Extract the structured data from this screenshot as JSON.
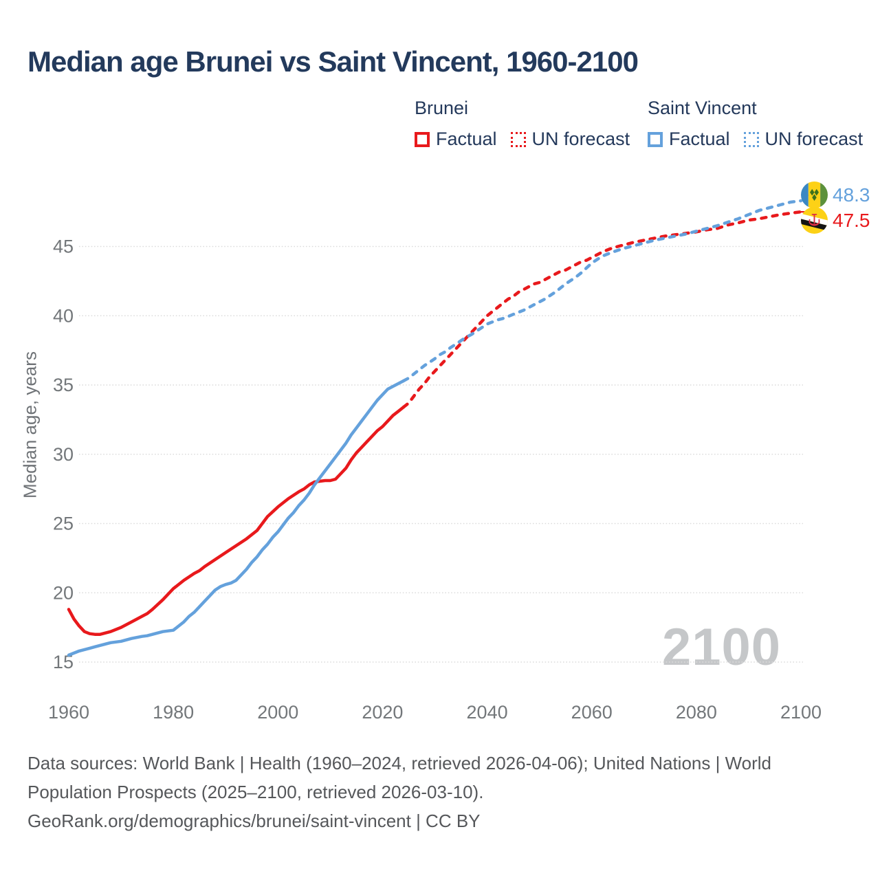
{
  "title": "Median age Brunei vs Saint Vincent, 1960-2100",
  "colors": {
    "brunei": "#e8191c",
    "saint_vincent": "#64a1dc",
    "title_text": "#233a5c",
    "legend_text": "#24395b",
    "tick_text": "#73777a",
    "gridline": "#dcdcdc",
    "watermark": "#c5c7c9",
    "footer_text": "#55575a"
  },
  "legend": {
    "groups": [
      {
        "label": "Brunei",
        "color": "#e8191c",
        "items": [
          {
            "label": "Factual",
            "style": "solid"
          },
          {
            "label": "UN forecast",
            "style": "dotted"
          }
        ]
      },
      {
        "label": "Saint Vincent",
        "color": "#64a1dc",
        "items": [
          {
            "label": "Factual",
            "style": "solid"
          },
          {
            "label": "UN forecast",
            "style": "dotted"
          }
        ]
      }
    ]
  },
  "chart_data": {
    "type": "line",
    "title": "Median age Brunei vs Saint Vincent, 1960-2100",
    "xlabel": "",
    "ylabel": "Median age, years",
    "xlim": [
      1960,
      2100
    ],
    "ylim": [
      15,
      49
    ],
    "x_ticks": [
      1960,
      1980,
      2000,
      2020,
      2040,
      2060,
      2080,
      2100
    ],
    "y_ticks": [
      15,
      20,
      25,
      30,
      35,
      40,
      45
    ],
    "grid": "horizontal-dotted",
    "legend_position": "top-right",
    "watermark": "2100",
    "series": [
      {
        "name": "Brunei Factual",
        "country": "Brunei",
        "kind": "Factual",
        "color": "#e8191c",
        "dash": false,
        "points": [
          [
            1960,
            18.8
          ],
          [
            1961,
            18.1
          ],
          [
            1962,
            17.6
          ],
          [
            1963,
            17.2
          ],
          [
            1964,
            17.05
          ],
          [
            1965,
            17.0
          ],
          [
            1966,
            17.0
          ],
          [
            1967,
            17.1
          ],
          [
            1968,
            17.2
          ],
          [
            1970,
            17.5
          ],
          [
            1972,
            17.9
          ],
          [
            1974,
            18.3
          ],
          [
            1975,
            18.5
          ],
          [
            1976,
            18.8
          ],
          [
            1978,
            19.5
          ],
          [
            1980,
            20.3
          ],
          [
            1982,
            20.9
          ],
          [
            1984,
            21.4
          ],
          [
            1985,
            21.6
          ],
          [
            1986,
            21.9
          ],
          [
            1988,
            22.4
          ],
          [
            1990,
            22.9
          ],
          [
            1992,
            23.4
          ],
          [
            1994,
            23.9
          ],
          [
            1996,
            24.5
          ],
          [
            1998,
            25.5
          ],
          [
            2000,
            26.2
          ],
          [
            2002,
            26.8
          ],
          [
            2004,
            27.3
          ],
          [
            2005,
            27.5
          ],
          [
            2006,
            27.8
          ],
          [
            2007,
            28.0
          ],
          [
            2008,
            28.05
          ],
          [
            2009,
            28.1
          ],
          [
            2010,
            28.1
          ],
          [
            2011,
            28.2
          ],
          [
            2012,
            28.6
          ],
          [
            2013,
            29.0
          ],
          [
            2014,
            29.6
          ],
          [
            2015,
            30.1
          ],
          [
            2016,
            30.5
          ],
          [
            2017,
            30.9
          ],
          [
            2018,
            31.3
          ],
          [
            2019,
            31.7
          ],
          [
            2020,
            32.0
          ],
          [
            2021,
            32.4
          ],
          [
            2022,
            32.8
          ],
          [
            2023,
            33.1
          ],
          [
            2024,
            33.4
          ]
        ]
      },
      {
        "name": "Brunei UN forecast",
        "country": "Brunei",
        "kind": "UN forecast",
        "color": "#e8191c",
        "dash": true,
        "points": [
          [
            2024,
            33.4
          ],
          [
            2025,
            33.7
          ],
          [
            2026,
            34.2
          ],
          [
            2027,
            34.7
          ],
          [
            2028,
            35.1
          ],
          [
            2029,
            35.6
          ],
          [
            2030,
            36.0
          ],
          [
            2031,
            36.4
          ],
          [
            2032,
            36.8
          ],
          [
            2033,
            37.2
          ],
          [
            2034,
            37.6
          ],
          [
            2035,
            38.0
          ],
          [
            2036,
            38.4
          ],
          [
            2037,
            38.8
          ],
          [
            2038,
            39.2
          ],
          [
            2039,
            39.6
          ],
          [
            2040,
            40.0
          ],
          [
            2041,
            40.3
          ],
          [
            2042,
            40.6
          ],
          [
            2043,
            40.9
          ],
          [
            2044,
            41.2
          ],
          [
            2045,
            41.4
          ],
          [
            2046,
            41.7
          ],
          [
            2047,
            41.9
          ],
          [
            2048,
            42.1
          ],
          [
            2049,
            42.3
          ],
          [
            2050,
            42.4
          ],
          [
            2051,
            42.6
          ],
          [
            2052,
            42.8
          ],
          [
            2053,
            43.0
          ],
          [
            2054,
            43.2
          ],
          [
            2055,
            43.3
          ],
          [
            2056,
            43.5
          ],
          [
            2057,
            43.7
          ],
          [
            2058,
            43.9
          ],
          [
            2059,
            44.0
          ],
          [
            2060,
            44.2
          ],
          [
            2062,
            44.6
          ],
          [
            2064,
            44.9
          ],
          [
            2066,
            45.1
          ],
          [
            2068,
            45.3
          ],
          [
            2070,
            45.45
          ],
          [
            2072,
            45.6
          ],
          [
            2074,
            45.75
          ],
          [
            2076,
            45.85
          ],
          [
            2078,
            45.95
          ],
          [
            2080,
            46.05
          ],
          [
            2082,
            46.2
          ],
          [
            2084,
            46.3
          ],
          [
            2086,
            46.55
          ],
          [
            2088,
            46.7
          ],
          [
            2090,
            46.9
          ],
          [
            2092,
            47.0
          ],
          [
            2094,
            47.15
          ],
          [
            2096,
            47.3
          ],
          [
            2098,
            47.4
          ],
          [
            2100,
            47.5
          ]
        ]
      },
      {
        "name": "Saint Vincent Factual",
        "country": "Saint Vincent",
        "kind": "Factual",
        "color": "#64a1dc",
        "dash": false,
        "points": [
          [
            1960,
            15.5
          ],
          [
            1962,
            15.8
          ],
          [
            1964,
            16.0
          ],
          [
            1965,
            16.1
          ],
          [
            1966,
            16.2
          ],
          [
            1968,
            16.4
          ],
          [
            1970,
            16.5
          ],
          [
            1972,
            16.7
          ],
          [
            1974,
            16.85
          ],
          [
            1975,
            16.9
          ],
          [
            1976,
            17.0
          ],
          [
            1977,
            17.1
          ],
          [
            1978,
            17.2
          ],
          [
            1979,
            17.25
          ],
          [
            1980,
            17.3
          ],
          [
            1981,
            17.6
          ],
          [
            1982,
            17.9
          ],
          [
            1983,
            18.3
          ],
          [
            1984,
            18.6
          ],
          [
            1985,
            19.0
          ],
          [
            1986,
            19.4
          ],
          [
            1987,
            19.8
          ],
          [
            1988,
            20.2
          ],
          [
            1989,
            20.45
          ],
          [
            1990,
            20.6
          ],
          [
            1991,
            20.7
          ],
          [
            1992,
            20.9
          ],
          [
            1993,
            21.3
          ],
          [
            1994,
            21.7
          ],
          [
            1995,
            22.2
          ],
          [
            1996,
            22.6
          ],
          [
            1997,
            23.1
          ],
          [
            1998,
            23.5
          ],
          [
            1999,
            24.0
          ],
          [
            2000,
            24.4
          ],
          [
            2001,
            24.9
          ],
          [
            2002,
            25.4
          ],
          [
            2003,
            25.8
          ],
          [
            2004,
            26.3
          ],
          [
            2005,
            26.7
          ],
          [
            2006,
            27.2
          ],
          [
            2007,
            27.8
          ],
          [
            2008,
            28.3
          ],
          [
            2009,
            28.8
          ],
          [
            2010,
            29.3
          ],
          [
            2011,
            29.8
          ],
          [
            2012,
            30.3
          ],
          [
            2013,
            30.8
          ],
          [
            2014,
            31.4
          ],
          [
            2015,
            31.9
          ],
          [
            2016,
            32.4
          ],
          [
            2017,
            32.9
          ],
          [
            2018,
            33.4
          ],
          [
            2019,
            33.9
          ],
          [
            2020,
            34.3
          ],
          [
            2021,
            34.7
          ],
          [
            2022,
            34.9
          ],
          [
            2023,
            35.1
          ],
          [
            2024,
            35.3
          ]
        ]
      },
      {
        "name": "Saint Vincent UN forecast",
        "country": "Saint Vincent",
        "kind": "UN forecast",
        "color": "#64a1dc",
        "dash": true,
        "points": [
          [
            2024,
            35.3
          ],
          [
            2025,
            35.5
          ],
          [
            2026,
            35.8
          ],
          [
            2027,
            36.1
          ],
          [
            2028,
            36.4
          ],
          [
            2029,
            36.65
          ],
          [
            2030,
            36.9
          ],
          [
            2031,
            37.2
          ],
          [
            2032,
            37.4
          ],
          [
            2033,
            37.7
          ],
          [
            2034,
            37.95
          ],
          [
            2035,
            38.2
          ],
          [
            2036,
            38.45
          ],
          [
            2037,
            38.65
          ],
          [
            2038,
            38.9
          ],
          [
            2039,
            39.15
          ],
          [
            2040,
            39.4
          ],
          [
            2041,
            39.55
          ],
          [
            2042,
            39.7
          ],
          [
            2043,
            39.8
          ],
          [
            2044,
            39.95
          ],
          [
            2045,
            40.1
          ],
          [
            2046,
            40.25
          ],
          [
            2047,
            40.4
          ],
          [
            2048,
            40.6
          ],
          [
            2049,
            40.8
          ],
          [
            2050,
            41.0
          ],
          [
            2051,
            41.2
          ],
          [
            2052,
            41.45
          ],
          [
            2053,
            41.7
          ],
          [
            2054,
            42.0
          ],
          [
            2055,
            42.3
          ],
          [
            2056,
            42.55
          ],
          [
            2057,
            42.8
          ],
          [
            2058,
            43.1
          ],
          [
            2059,
            43.45
          ],
          [
            2060,
            43.8
          ],
          [
            2061,
            44.05
          ],
          [
            2062,
            44.3
          ],
          [
            2064,
            44.6
          ],
          [
            2066,
            44.85
          ],
          [
            2068,
            45.05
          ],
          [
            2070,
            45.25
          ],
          [
            2072,
            45.45
          ],
          [
            2074,
            45.6
          ],
          [
            2076,
            45.75
          ],
          [
            2078,
            45.9
          ],
          [
            2080,
            46.1
          ],
          [
            2082,
            46.3
          ],
          [
            2084,
            46.5
          ],
          [
            2086,
            46.75
          ],
          [
            2088,
            47.0
          ],
          [
            2090,
            47.3
          ],
          [
            2092,
            47.6
          ],
          [
            2094,
            47.8
          ],
          [
            2096,
            48.0
          ],
          [
            2098,
            48.2
          ],
          [
            2100,
            48.3
          ]
        ]
      }
    ],
    "end_labels": [
      {
        "series": "Saint Vincent UN forecast",
        "value": "48.3",
        "color": "#64a1dc",
        "flag": "saint-vincent"
      },
      {
        "series": "Brunei UN forecast",
        "value": "47.5",
        "color": "#e8191c",
        "flag": "brunei"
      }
    ]
  },
  "footer": {
    "lines": [
      "Data sources: World Bank | Health (1960–2024, retrieved 2026-04-06); United Nations | World",
      "Population Prospects (2025–2100, retrieved 2026-03-10).",
      "GeoRank.org/demographics/brunei/saint-vincent | CC BY"
    ]
  }
}
